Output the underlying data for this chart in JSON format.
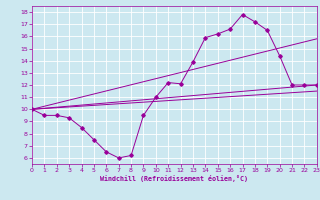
{
  "xlabel": "Windchill (Refroidissement éolien,°C)",
  "xlim": [
    0,
    23
  ],
  "ylim": [
    5.5,
    18.5
  ],
  "yticks": [
    6,
    7,
    8,
    9,
    10,
    11,
    12,
    13,
    14,
    15,
    16,
    17,
    18
  ],
  "xticks": [
    0,
    1,
    2,
    3,
    4,
    5,
    6,
    7,
    8,
    9,
    10,
    11,
    12,
    13,
    14,
    15,
    16,
    17,
    18,
    19,
    20,
    21,
    22,
    23
  ],
  "bg_color": "#cce8f0",
  "line_color": "#990099",
  "grid_color": "#ffffff",
  "line_main": {
    "x": [
      0,
      1,
      2,
      3,
      4,
      5,
      6,
      7,
      8,
      9,
      10,
      11,
      12,
      13,
      14,
      15,
      16,
      17,
      18,
      19,
      20,
      21,
      22,
      23
    ],
    "y": [
      10,
      9.5,
      9.5,
      9.3,
      8.5,
      7.5,
      6.5,
      6.0,
      6.2,
      9.5,
      11.0,
      12.2,
      12.1,
      13.9,
      15.9,
      16.2,
      16.6,
      17.8,
      17.2,
      16.5,
      14.4,
      12.0,
      12.0,
      12.0
    ]
  },
  "line_straight1": {
    "x": [
      0,
      23
    ],
    "y": [
      10,
      12.0
    ]
  },
  "line_straight2": {
    "x": [
      0,
      23
    ],
    "y": [
      10,
      11.5
    ]
  },
  "line_straight3": {
    "x": [
      0,
      23
    ],
    "y": [
      10,
      15.8
    ]
  }
}
